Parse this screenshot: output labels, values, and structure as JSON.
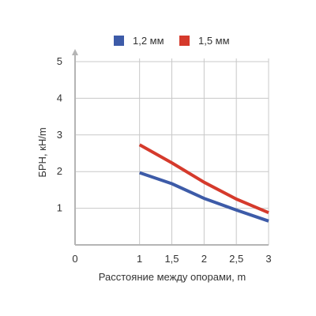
{
  "chart_data": {
    "type": "line",
    "xlabel": "Расстояние между опорами, m",
    "ylabel": "БРН, кН/m",
    "xlim": [
      0,
      3
    ],
    "ylim": [
      0,
      5
    ],
    "x_ticks": [
      "0",
      "1",
      "1,5",
      "2",
      "2,5",
      "3"
    ],
    "y_ticks": [
      "1",
      "2",
      "3",
      "4",
      "5"
    ],
    "grid": true,
    "legend_position": "top",
    "series": [
      {
        "name": "1,2 мм",
        "color": "#3d5ba8",
        "x": [
          1,
          1.5,
          2,
          2.5,
          3
        ],
        "y": [
          1.97,
          1.67,
          1.27,
          0.95,
          0.65
        ]
      },
      {
        "name": "1,5 мм",
        "color": "#d53a2c",
        "x": [
          1,
          1.5,
          2,
          2.5,
          3
        ],
        "y": [
          2.73,
          2.24,
          1.71,
          1.25,
          0.88
        ]
      }
    ]
  }
}
